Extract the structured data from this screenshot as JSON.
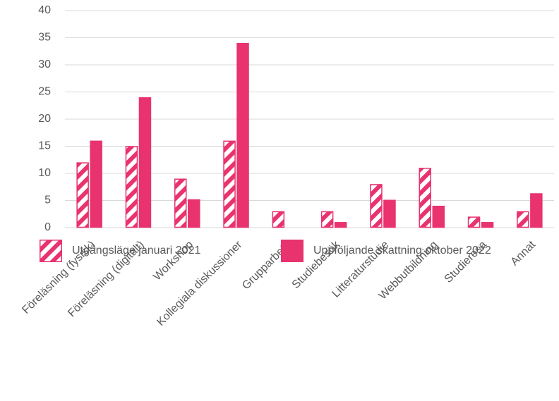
{
  "chart_data": {
    "type": "bar",
    "categories": [
      "Föreläsning (fysisk)",
      "Föreläsning (digitalt)",
      "Workshop",
      "Kollegiala diskussioner",
      "Grupparbete",
      "Studiebesök",
      "Litteraturstudie",
      "Webbutbildning",
      "Studieresa",
      "Annat"
    ],
    "series": [
      {
        "name": "Utgångsläge januari 2021",
        "color": "#e8336f",
        "fill": "hatched",
        "values": [
          12,
          15,
          9,
          16,
          3,
          3,
          8,
          11,
          2,
          3
        ]
      },
      {
        "name": "Uppföljande skattning oktober 2022",
        "color": "#e8336f",
        "fill": "solid",
        "values": [
          16,
          24,
          5.2,
          34,
          0,
          1,
          5.1,
          4,
          1,
          6.3
        ]
      }
    ],
    "ylim": [
      0,
      40
    ],
    "yticks": [
      0,
      5,
      10,
      15,
      20,
      25,
      30,
      35,
      40
    ],
    "grid": true,
    "legend": "bottom"
  }
}
